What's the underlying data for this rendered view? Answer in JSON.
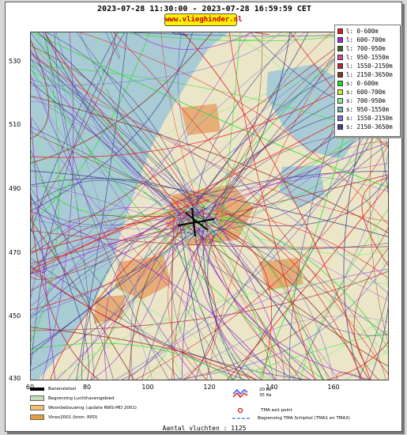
{
  "header": {
    "time_range": "2023-07-28 11:30:00 - 2023-07-28 16:59:59 CET",
    "site_label": "www.vlieghinder.nl"
  },
  "map": {
    "y_ticks": [
      "530",
      "510",
      "490",
      "470",
      "450",
      "430"
    ],
    "x_ticks": [
      "60",
      "80",
      "100",
      "120",
      "140",
      "160"
    ],
    "colors": {
      "sea": "#a9cbd6",
      "land": "#ece6c8",
      "lake": "#a9cbd6",
      "urban": "#e6a468",
      "airport_zone": "#c4dcb8"
    }
  },
  "legend": {
    "items": [
      {
        "label": "l: 0-600m",
        "color": "#e8161a"
      },
      {
        "label": "l: 600-700m",
        "color": "#a02bd8"
      },
      {
        "label": "l: 700-950m",
        "color": "#3a6a1c"
      },
      {
        "label": "l: 950-1550m",
        "color": "#d05090"
      },
      {
        "label": "l: 1550-2150m",
        "color": "#b02838"
      },
      {
        "label": "l: 2150-3650m",
        "color": "#8a3418"
      },
      {
        "label": "s: 0-600m",
        "color": "#20e020"
      },
      {
        "label": "s: 600-700m",
        "color": "#c8ee40"
      },
      {
        "label": "s: 700-950m",
        "color": "#88f088"
      },
      {
        "label": "s: 950-1550m",
        "color": "#70b8b0"
      },
      {
        "label": "s: 1550-2150m",
        "color": "#7a7ad0"
      },
      {
        "label": "s: 2150-3650m",
        "color": "#40408c"
      }
    ]
  },
  "bottom_legend": {
    "runway": "Banenstelsel",
    "airport_boundary": "Begrenzing Luchthavengebied",
    "housing": "Woonbebouwing (update RWS-MD 2001)",
    "vinex": "Vinex2001 (bron: RPD)",
    "noise_20": "20 Ke",
    "noise_35": "35 Ke",
    "tma_exit": "TMA exit point",
    "tma_boundary": "Begrenzing TMA Schiphol  (TMA1 en TMA3)"
  },
  "footer": {
    "flight_count": "Aantal vluchten : 1125"
  }
}
